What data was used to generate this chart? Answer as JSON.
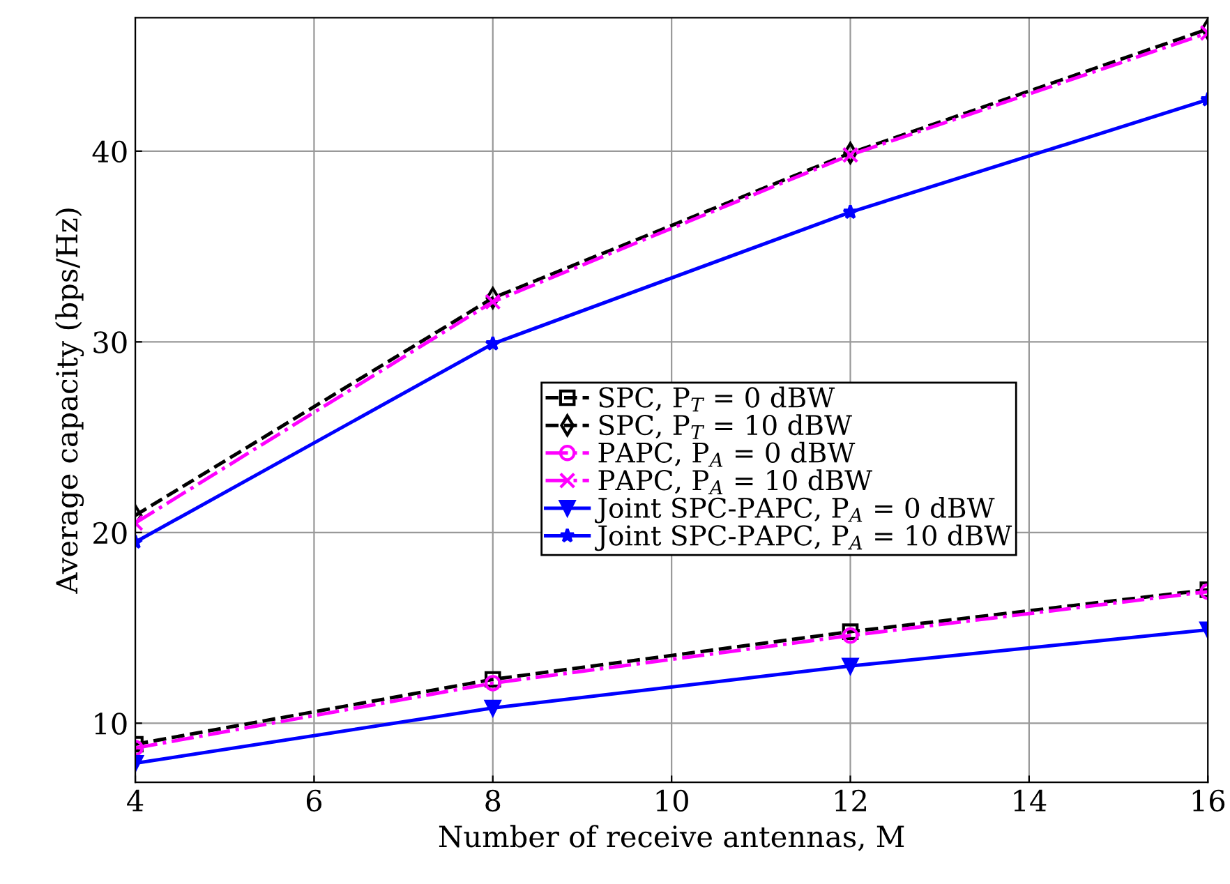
{
  "chart_data": {
    "type": "line",
    "xlabel": "Number of receive antennas, M",
    "ylabel": "Average capacity (bps/Hz)",
    "x": [
      4,
      8,
      12,
      16
    ],
    "series": [
      {
        "name": "SPC, P$_{T}$ = 0 dBW",
        "color": "#000000",
        "marker": "square",
        "line_style": "dashed",
        "values": [
          8.9,
          12.3,
          14.8,
          17.0
        ]
      },
      {
        "name": "SPC, P$_{T}$ = 10 dBW",
        "color": "#000000",
        "marker": "diamond",
        "line_style": "dashed",
        "values": [
          20.9,
          32.3,
          39.9,
          46.4
        ]
      },
      {
        "name": "PAPC, P$_{A}$ = 0 dBW",
        "color": "#ff00ff",
        "marker": "circle",
        "line_style": "dashdot",
        "values": [
          8.7,
          12.1,
          14.6,
          16.9
        ]
      },
      {
        "name": "PAPC, P$_{A}$ = 10 dBW",
        "color": "#ff00ff",
        "marker": "cross",
        "line_style": "dashdot",
        "values": [
          20.5,
          32.1,
          39.8,
          46.2
        ]
      },
      {
        "name": "Joint SPC-PAPC, P$_{A}$ = 0 dBW",
        "color": "#0000ff",
        "marker": "triangle",
        "line_style": "solid",
        "values": [
          7.9,
          10.8,
          13.0,
          14.9
        ]
      },
      {
        "name": "Joint SPC-PAPC, P$_{A}$ = 10 dBW",
        "color": "#0000ff",
        "marker": "star",
        "line_style": "solid",
        "values": [
          19.5,
          29.9,
          36.8,
          42.7
        ]
      }
    ],
    "xlim": [
      4,
      16
    ],
    "xticks": [
      4,
      6,
      8,
      10,
      12,
      14,
      16
    ],
    "ylim": [
      6.9,
      47
    ],
    "yticks": [
      10,
      20,
      30,
      40
    ],
    "grid": true,
    "legend": "center"
  }
}
